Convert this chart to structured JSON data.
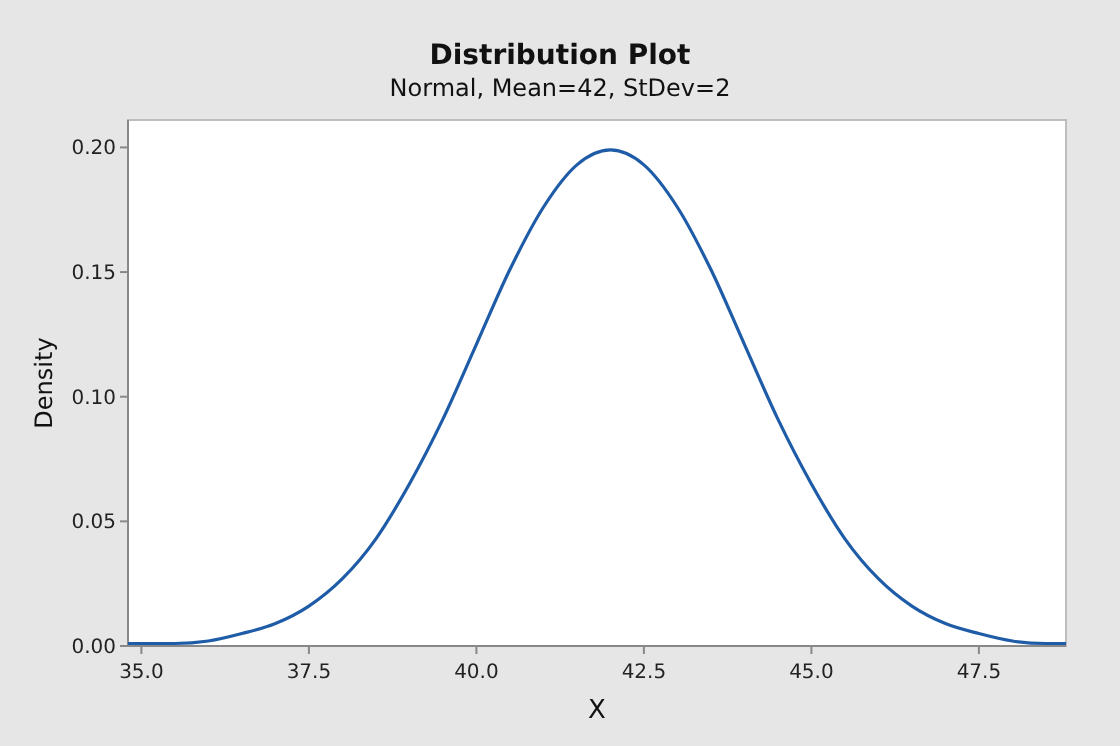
{
  "chart_data": {
    "type": "line",
    "title": "Distribution Plot",
    "subtitle": "Normal, Mean=42, StDev=2",
    "xlabel": "X",
    "ylabel": "Density",
    "x": [
      34.8,
      35,
      35.5,
      36,
      36.5,
      37,
      37.5,
      38,
      38.5,
      39,
      39.5,
      40,
      40.5,
      41,
      41.5,
      42,
      42.5,
      43,
      43.5,
      44,
      44.5,
      45,
      45.5,
      46,
      46.5,
      47,
      47.5,
      48,
      48.5,
      48.8
    ],
    "series": [
      {
        "color": "#1f5ca8",
        "values": [
          0.001,
          0.001,
          0.001,
          0.002,
          0.005,
          0.009,
          0.016,
          0.027,
          0.043,
          0.065,
          0.091,
          0.121,
          0.151,
          0.176,
          0.193,
          0.199,
          0.193,
          0.176,
          0.151,
          0.121,
          0.091,
          0.065,
          0.043,
          0.027,
          0.016,
          0.009,
          0.005,
          0.002,
          0.001,
          0.001
        ]
      }
    ],
    "xlim": [
      34.8,
      48.8
    ],
    "ylim": [
      0,
      0.211
    ],
    "xticks": [
      {
        "value": 35,
        "label": "35.0"
      },
      37.5,
      {
        "value": 40,
        "label": "40.0"
      },
      42.5,
      {
        "value": 45,
        "label": "45.0"
      },
      47.5
    ],
    "yticks": [
      {
        "value": 0,
        "label": "0.00"
      },
      0.05,
      {
        "value": 0.1,
        "label": "0.10"
      },
      0.15,
      {
        "value": 0.2,
        "label": "0.20"
      }
    ],
    "grid": false,
    "marker": "none",
    "line_style": "solid"
  }
}
